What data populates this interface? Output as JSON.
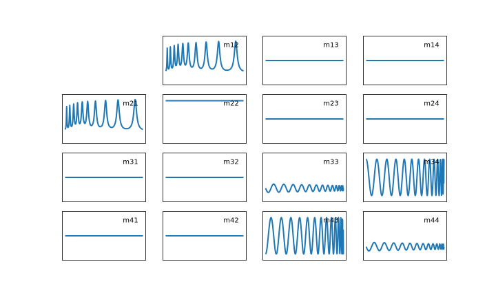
{
  "chart_data": {
    "type": "line",
    "layout": "4x4 grid of small multiples, first panel (m11) absent",
    "axes_ticks": "hidden",
    "line_color": "#1f77b4",
    "panels": [
      {
        "label": "m12",
        "shape": "resonance",
        "baseline": 0.22,
        "amplitude": 0.72,
        "peaks": [
          0.02,
          0.06,
          0.11,
          0.16,
          0.22,
          0.29,
          0.39,
          0.52,
          0.68,
          0.9
        ],
        "ylim": [
          0,
          1
        ]
      },
      {
        "label": "m13",
        "shape": "constant",
        "value": 0.5,
        "ylim": [
          0,
          1
        ]
      },
      {
        "label": "m14",
        "shape": "constant",
        "value": 0.5,
        "ylim": [
          0,
          1
        ]
      },
      {
        "label": "m21",
        "shape": "resonance",
        "baseline": 0.22,
        "amplitude": 0.72,
        "peaks": [
          0.02,
          0.06,
          0.11,
          0.16,
          0.22,
          0.29,
          0.39,
          0.52,
          0.68,
          0.9
        ],
        "ylim": [
          0,
          1
        ]
      },
      {
        "label": "m22",
        "shape": "constant",
        "value": 0.92,
        "ylim": [
          0,
          1
        ]
      },
      {
        "label": "m23",
        "shape": "constant",
        "value": 0.5,
        "ylim": [
          0,
          1
        ]
      },
      {
        "label": "m24",
        "shape": "constant",
        "value": 0.5,
        "ylim": [
          0,
          1
        ]
      },
      {
        "label": "m31",
        "shape": "constant",
        "value": 0.5,
        "ylim": [
          0,
          1
        ]
      },
      {
        "label": "m32",
        "shape": "constant",
        "value": 0.5,
        "ylim": [
          0,
          1
        ]
      },
      {
        "label": "m33",
        "shape": "damped",
        "center": 0.25,
        "amplitude": 0.1,
        "cycles": 14,
        "ylim": [
          0,
          1
        ]
      },
      {
        "label": "m34",
        "shape": "oscillation",
        "center": 0.5,
        "amplitude": 0.42,
        "cycles": 14,
        "end_phase": 1,
        "ylim": [
          0,
          1
        ]
      },
      {
        "label": "m41",
        "shape": "constant",
        "value": 0.5,
        "ylim": [
          0,
          1
        ]
      },
      {
        "label": "m42",
        "shape": "constant",
        "value": 0.5,
        "ylim": [
          0,
          1
        ]
      },
      {
        "label": "m43",
        "shape": "oscillation",
        "center": 0.5,
        "amplitude": 0.42,
        "cycles": 14,
        "end_phase": -1,
        "ylim": [
          0,
          1
        ]
      },
      {
        "label": "m44",
        "shape": "damped",
        "center": 0.25,
        "amplitude": 0.1,
        "cycles": 14,
        "ylim": [
          0,
          1
        ]
      }
    ]
  }
}
